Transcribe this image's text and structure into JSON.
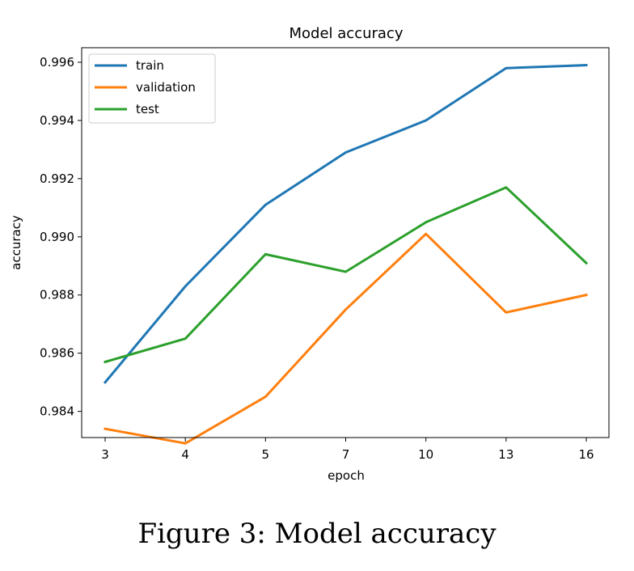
{
  "caption": "Figure 3: Model accuracy",
  "chart_data": {
    "type": "line",
    "title": "Model accuracy",
    "xlabel": "epoch",
    "ylabel": "accuracy",
    "categories": [
      "3",
      "4",
      "5",
      "7",
      "10",
      "13",
      "16"
    ],
    "ylim": [
      0.9831,
      0.9965
    ],
    "yticks": [
      0.984,
      0.986,
      0.988,
      0.99,
      0.992,
      0.994,
      0.996
    ],
    "ytick_labels": [
      "0.984",
      "0.986",
      "0.988",
      "0.990",
      "0.992",
      "0.994",
      "0.996"
    ],
    "grid": false,
    "legend": "top-left",
    "series": [
      {
        "name": "train",
        "color": "#1f77b4",
        "values": [
          0.985,
          0.9883,
          0.9911,
          0.9929,
          0.994,
          0.9958,
          0.9959
        ]
      },
      {
        "name": "validation",
        "color": "#ff7f0e",
        "values": [
          0.9834,
          0.9829,
          0.9845,
          0.9875,
          0.9901,
          0.9874,
          0.988
        ]
      },
      {
        "name": "test",
        "color": "#2ca02c",
        "values": [
          0.9857,
          0.9865,
          0.9894,
          0.9888,
          0.9905,
          0.9917,
          0.9891
        ]
      }
    ]
  }
}
